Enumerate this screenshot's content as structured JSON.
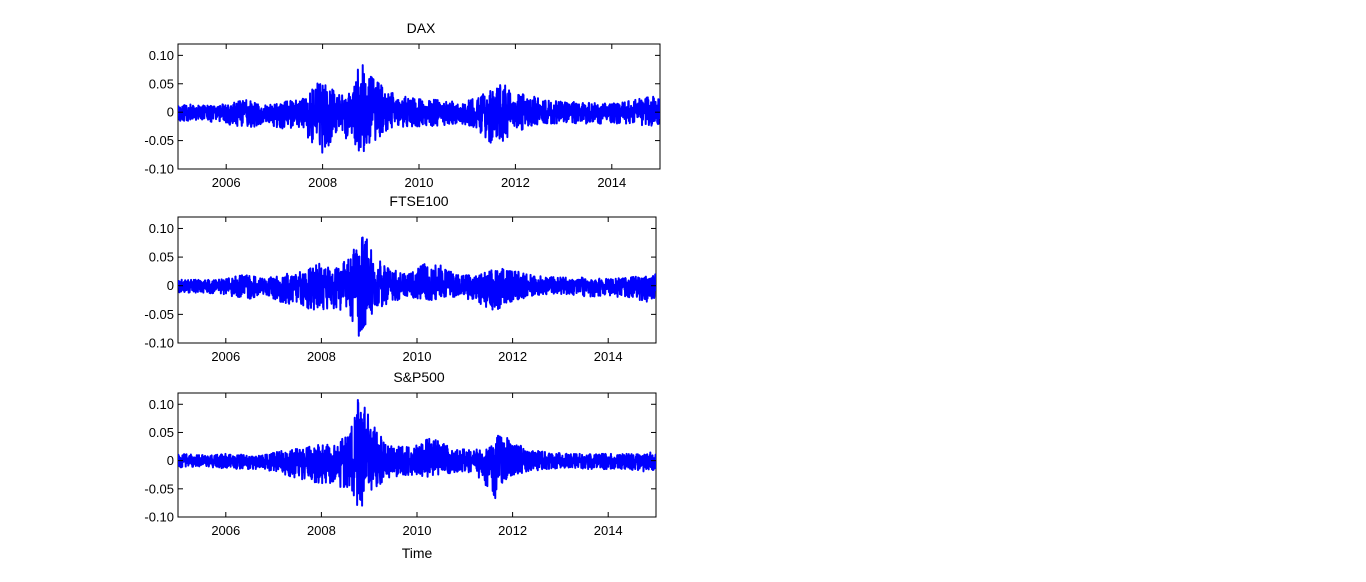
{
  "colors": {
    "series": "#0000ff",
    "axes": "#000000",
    "background": "#ffffff"
  },
  "chart_data": [
    {
      "type": "line",
      "title": "DAX",
      "xlabel": "",
      "ylabel": "",
      "xlim": [
        2005.0,
        2015.0
      ],
      "ylim": [
        -0.1,
        0.12
      ],
      "xticks": [
        2006,
        2008,
        2010,
        2012,
        2014
      ],
      "xtick_labels": [
        "2006",
        "2008",
        "2010",
        "2012",
        "2014"
      ],
      "yticks": [
        -0.1,
        -0.05,
        0,
        0.05,
        0.1
      ],
      "ytick_labels": [
        "-0.10",
        "-0.05",
        "0",
        "0.05",
        "0.10"
      ],
      "grid": false,
      "series": [
        {
          "color": "#0000ff",
          "envelope": {
            "x": [
              2005.0,
              2005.5,
              2006.0,
              2006.4,
              2006.8,
              2007.2,
              2007.6,
              2008.0,
              2008.3,
              2008.6,
              2008.75,
              2008.9,
              2009.1,
              2009.4,
              2009.8,
              2010.3,
              2010.8,
              2011.2,
              2011.5,
              2011.65,
              2011.9,
              2012.3,
              2012.7,
              2013.2,
              2013.6,
              2014.0,
              2014.4,
              2014.8,
              2015.0
            ],
            "upper": [
              0.015,
              0.012,
              0.014,
              0.022,
              0.012,
              0.018,
              0.024,
              0.06,
              0.03,
              0.04,
              0.108,
              0.07,
              0.055,
              0.035,
              0.025,
              0.022,
              0.018,
              0.025,
              0.04,
              0.05,
              0.045,
              0.03,
              0.02,
              0.018,
              0.016,
              0.015,
              0.02,
              0.028,
              0.025
            ],
            "lower": [
              -0.015,
              -0.015,
              -0.02,
              -0.03,
              -0.02,
              -0.03,
              -0.035,
              -0.075,
              -0.04,
              -0.05,
              -0.072,
              -0.07,
              -0.05,
              -0.03,
              -0.025,
              -0.025,
              -0.02,
              -0.03,
              -0.055,
              -0.06,
              -0.04,
              -0.025,
              -0.02,
              -0.02,
              -0.02,
              -0.02,
              -0.02,
              -0.025,
              -0.02
            ]
          }
        }
      ]
    },
    {
      "type": "line",
      "title": "FTSE100",
      "xlabel": "",
      "ylabel": "",
      "xlim": [
        2005.0,
        2015.0
      ],
      "ylim": [
        -0.1,
        0.12
      ],
      "xticks": [
        2006,
        2008,
        2010,
        2012,
        2014
      ],
      "xtick_labels": [
        "2006",
        "2008",
        "2010",
        "2012",
        "2014"
      ],
      "yticks": [
        -0.1,
        -0.05,
        0,
        0.05,
        0.1
      ],
      "ytick_labels": [
        "-0.10",
        "-0.05",
        "0",
        "0.05",
        "0.10"
      ],
      "grid": false,
      "series": [
        {
          "color": "#0000ff",
          "envelope": {
            "x": [
              2005.0,
              2005.5,
              2006.0,
              2006.4,
              2006.8,
              2007.2,
              2007.6,
              2008.0,
              2008.3,
              2008.6,
              2008.75,
              2008.9,
              2009.1,
              2009.4,
              2009.8,
              2010.3,
              2010.8,
              2011.2,
              2011.5,
              2011.65,
              2011.9,
              2012.3,
              2012.7,
              2013.2,
              2013.6,
              2014.0,
              2014.4,
              2014.8,
              2015.0
            ],
            "upper": [
              0.012,
              0.01,
              0.012,
              0.02,
              0.012,
              0.02,
              0.025,
              0.04,
              0.03,
              0.05,
              0.085,
              0.09,
              0.055,
              0.03,
              0.02,
              0.045,
              0.02,
              0.018,
              0.025,
              0.03,
              0.03,
              0.02,
              0.015,
              0.015,
              0.014,
              0.012,
              0.014,
              0.018,
              0.02
            ],
            "lower": [
              -0.012,
              -0.012,
              -0.015,
              -0.025,
              -0.015,
              -0.03,
              -0.035,
              -0.05,
              -0.04,
              -0.05,
              -0.092,
              -0.07,
              -0.045,
              -0.03,
              -0.02,
              -0.025,
              -0.02,
              -0.025,
              -0.045,
              -0.045,
              -0.03,
              -0.02,
              -0.015,
              -0.015,
              -0.02,
              -0.02,
              -0.02,
              -0.028,
              -0.02
            ]
          }
        }
      ]
    },
    {
      "type": "line",
      "title": "S&P500",
      "xlabel": "Time",
      "ylabel": "",
      "xlim": [
        2005.0,
        2015.0
      ],
      "ylim": [
        -0.1,
        0.12
      ],
      "xticks": [
        2006,
        2008,
        2010,
        2012,
        2014
      ],
      "xtick_labels": [
        "2006",
        "2008",
        "2010",
        "2012",
        "2014"
      ],
      "yticks": [
        -0.1,
        -0.05,
        0,
        0.05,
        0.1
      ],
      "ytick_labels": [
        "-0.10",
        "-0.05",
        "0",
        "0.05",
        "0.10"
      ],
      "grid": false,
      "series": [
        {
          "color": "#0000ff",
          "envelope": {
            "x": [
              2005.0,
              2005.5,
              2006.0,
              2006.4,
              2006.8,
              2007.2,
              2007.6,
              2008.0,
              2008.3,
              2008.6,
              2008.75,
              2008.9,
              2009.1,
              2009.4,
              2009.8,
              2010.3,
              2010.8,
              2011.2,
              2011.5,
              2011.65,
              2011.9,
              2012.3,
              2012.7,
              2013.2,
              2013.6,
              2014.0,
              2014.4,
              2014.8,
              2015.0
            ],
            "upper": [
              0.012,
              0.01,
              0.012,
              0.012,
              0.01,
              0.018,
              0.022,
              0.03,
              0.03,
              0.05,
              0.11,
              0.095,
              0.06,
              0.03,
              0.025,
              0.04,
              0.02,
              0.02,
              0.02,
              0.045,
              0.04,
              0.02,
              0.015,
              0.012,
              0.012,
              0.012,
              0.012,
              0.012,
              0.018
            ],
            "lower": [
              -0.012,
              -0.01,
              -0.015,
              -0.015,
              -0.015,
              -0.025,
              -0.035,
              -0.04,
              -0.045,
              -0.05,
              -0.092,
              -0.092,
              -0.05,
              -0.03,
              -0.025,
              -0.03,
              -0.02,
              -0.022,
              -0.05,
              -0.07,
              -0.03,
              -0.02,
              -0.015,
              -0.012,
              -0.015,
              -0.015,
              -0.015,
              -0.02,
              -0.015
            ]
          }
        }
      ]
    }
  ]
}
